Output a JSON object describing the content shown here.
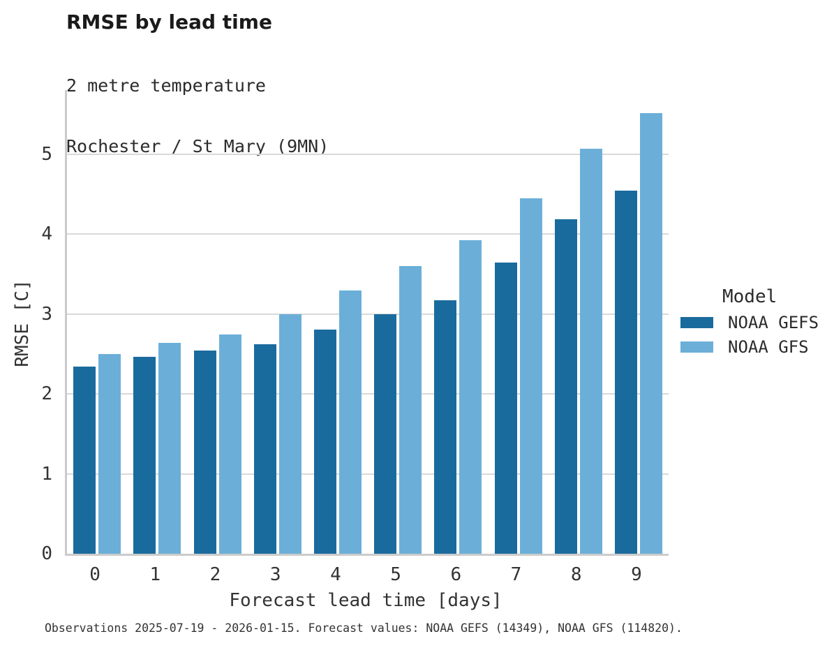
{
  "header": {
    "title": "RMSE by lead time",
    "subtitle_line1": "2 metre temperature",
    "subtitle_line2": "Rochester / St Mary (9MN)"
  },
  "legend": {
    "title": "Model",
    "items": [
      {
        "label": "NOAA GEFS",
        "color": "#1a6b9d"
      },
      {
        "label": "NOAA GFS",
        "color": "#6bafd9"
      }
    ]
  },
  "footer": {
    "text": "Observations 2025-07-19 - 2026-01-15. Forecast values: NOAA GEFS (14349), NOAA GFS (114820)."
  },
  "chart_data": {
    "type": "bar",
    "title": "RMSE by lead time",
    "subtitle": [
      "2 metre temperature",
      "Rochester / St Mary (9MN)"
    ],
    "xlabel": "Forecast lead time [days]",
    "ylabel": "RMSE [C]",
    "categories": [
      "0",
      "1",
      "2",
      "3",
      "4",
      "5",
      "6",
      "7",
      "8",
      "9"
    ],
    "series": [
      {
        "name": "NOAA GEFS",
        "color": "#1a6b9d",
        "values": [
          2.34,
          2.46,
          2.54,
          2.62,
          2.8,
          3.0,
          3.17,
          3.64,
          4.18,
          4.54
        ]
      },
      {
        "name": "NOAA GFS",
        "color": "#6bafd9",
        "values": [
          2.5,
          2.64,
          2.74,
          3.0,
          3.29,
          3.6,
          3.92,
          4.45,
          5.07,
          5.51
        ]
      }
    ],
    "ylim": [
      0,
      5.8
    ],
    "yticks": [
      0,
      1,
      2,
      3,
      4,
      5
    ],
    "grid": true,
    "legend_position": "right",
    "legend_title": "Model",
    "annotation": "Observations 2025-07-19 - 2026-01-15. Forecast values: NOAA GEFS (14349), NOAA GFS (114820)."
  },
  "colors": {
    "grid": "#d9d9d9",
    "spine": "#cbcbcb",
    "title_text": "#1a1a1a",
    "body_text": "#333333"
  }
}
